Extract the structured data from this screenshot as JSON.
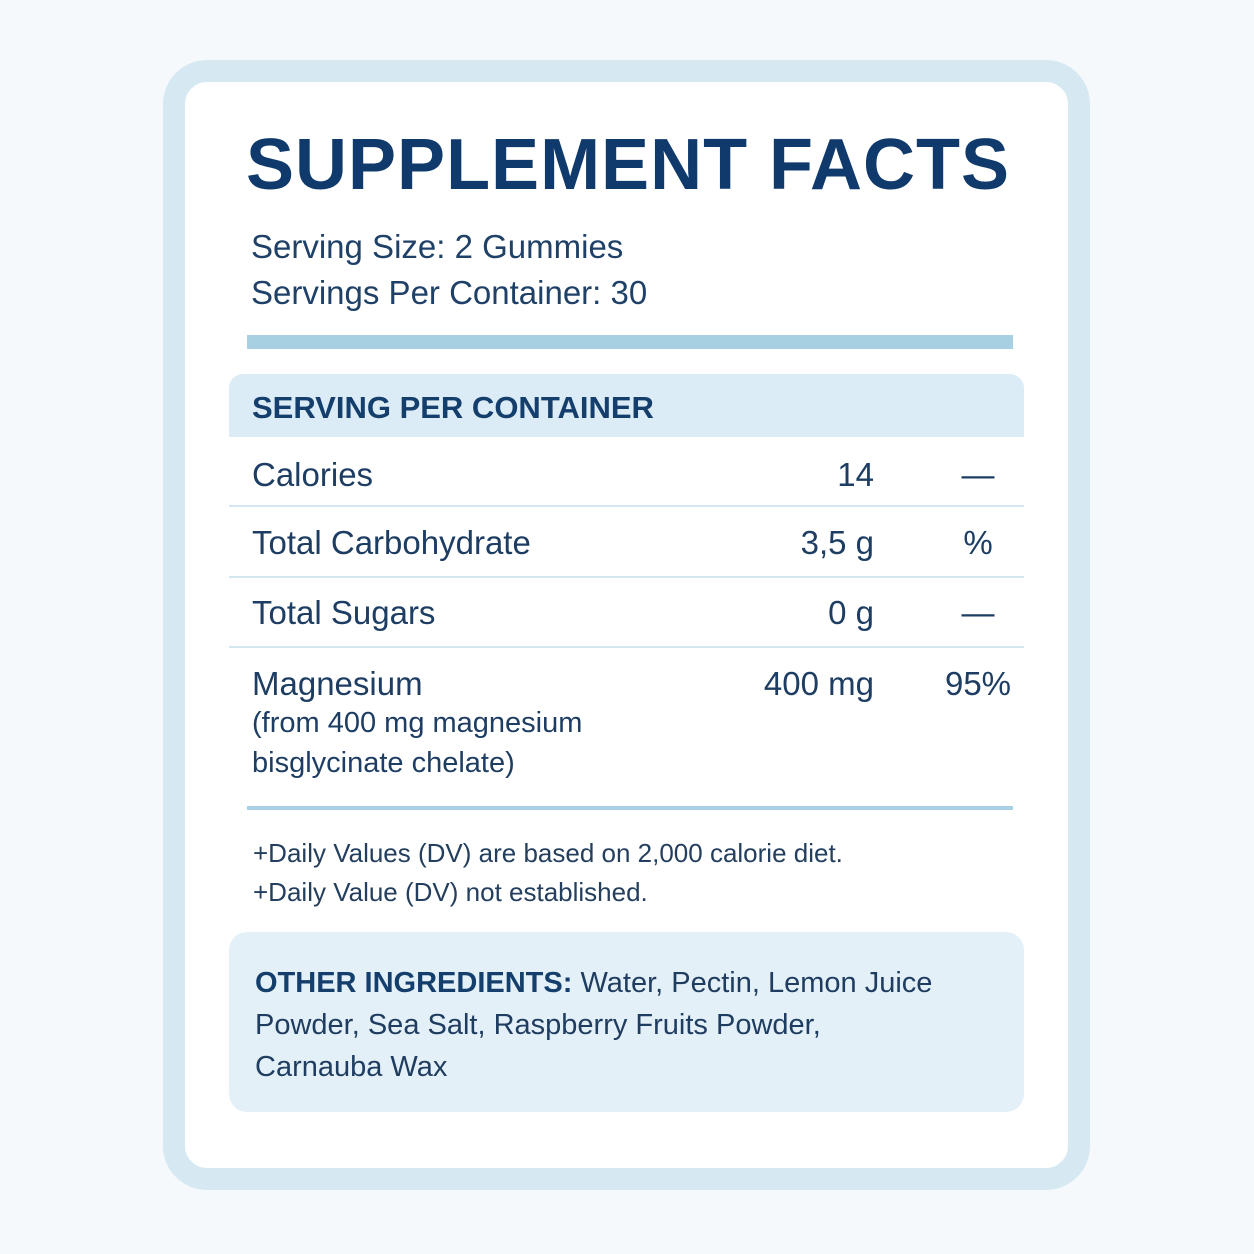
{
  "header": {
    "title": "SUPPLEMENT FACTS",
    "serving_size": "Serving Size: 2 Gummies",
    "servings_per_container": "Servings Per Container: 30"
  },
  "table": {
    "header": "SERVING PER CONTAINER",
    "rows": [
      {
        "name": "Calories",
        "amount": "14",
        "dv": "—"
      },
      {
        "name": "Total Carbohydrate",
        "amount": "3,5 g",
        "dv": "%"
      },
      {
        "name": "Total Sugars",
        "amount": "0 g",
        "dv": "—"
      },
      {
        "name": "Magnesium",
        "sub": [
          "(from 400 mg magnesium",
          "bisglycinate chelate)"
        ],
        "amount": "400 mg",
        "dv": "95%"
      }
    ]
  },
  "footnotes": [
    "+Daily Values (DV) are based on 2,000 calorie diet.",
    "+Daily Value (DV) not established."
  ],
  "other_ingredients": {
    "label": "OTHER INGREDIENTS:",
    "text": "Water, Pectin, Lemon Juice Powder, Sea Salt, Raspberry Fruits Powder, Carnauba Wax"
  }
}
